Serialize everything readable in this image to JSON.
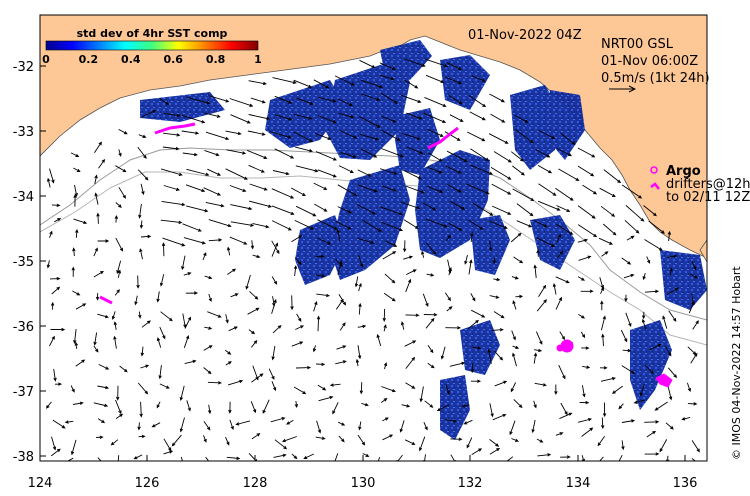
{
  "map": {
    "date_label": "01-Nov-2022 04Z",
    "product": {
      "line1": "NRT00 GSL",
      "line2": "01-Nov 06:00Z",
      "line3": "0.5m/s (1kt 24h)"
    },
    "legend": {
      "argo_label": "Argo",
      "drifters_line1": "drifters@12h",
      "drifters_line2": "to 02/11 12Z"
    },
    "colorbar": {
      "title": "std dev of 4hr SST comp",
      "ticks": [
        "0",
        "0.2",
        "0.4",
        "0.6",
        "0.8",
        "1"
      ]
    },
    "x_ticks": [
      "124",
      "126",
      "128",
      "130",
      "132",
      "134",
      "136"
    ],
    "y_ticks": [
      "-32",
      "-33",
      "-34",
      "-35",
      "-36",
      "-37",
      "-38"
    ],
    "credit": "© IMOS 04-Nov-2022 14:57 Hobart",
    "colors": {
      "land": "#fdc796",
      "ocean": "#ffffff",
      "argo": "#ff00ff",
      "sst_patch": "#1a2fa0",
      "arrow": "#000000"
    }
  }
}
